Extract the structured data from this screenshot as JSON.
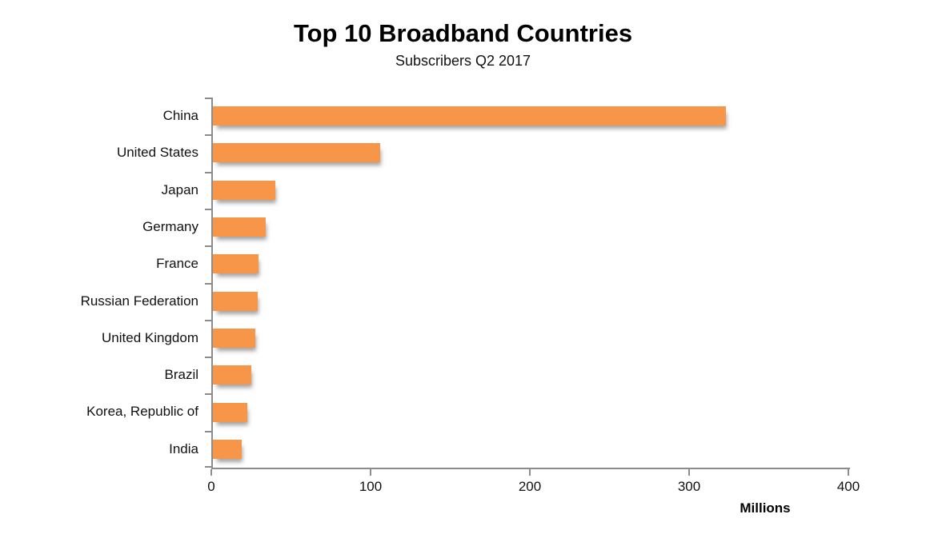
{
  "chart_data": {
    "type": "bar",
    "orientation": "horizontal",
    "title": "Top 10 Broadband Countries",
    "subtitle": "Subscribers Q2 2017",
    "categories": [
      "China",
      "United States",
      "Japan",
      "Germany",
      "France",
      "Russian Federation",
      "United Kingdom",
      "Brazil",
      "Korea, Republic of",
      "India"
    ],
    "values": [
      322,
      105,
      39,
      33,
      28.5,
      28,
      26.5,
      24,
      21.5,
      18
    ],
    "xlabel": "Millions",
    "xlim": [
      0,
      400
    ],
    "xticks": [
      0,
      100,
      200,
      300,
      400
    ],
    "bar_color": "#F79648",
    "axis_color": "#8C8C8C",
    "grid": false,
    "legend": false
  }
}
